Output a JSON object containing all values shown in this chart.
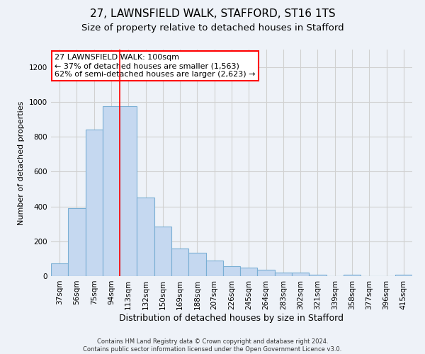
{
  "title_line1": "27, LAWNSFIELD WALK, STAFFORD, ST16 1TS",
  "title_line2": "Size of property relative to detached houses in Stafford",
  "xlabel": "Distribution of detached houses by size in Stafford",
  "ylabel": "Number of detached properties",
  "categories": [
    "37sqm",
    "56sqm",
    "75sqm",
    "94sqm",
    "113sqm",
    "132sqm",
    "150sqm",
    "169sqm",
    "188sqm",
    "207sqm",
    "226sqm",
    "245sqm",
    "264sqm",
    "283sqm",
    "302sqm",
    "321sqm",
    "339sqm",
    "358sqm",
    "377sqm",
    "396sqm",
    "415sqm"
  ],
  "values": [
    75,
    390,
    840,
    975,
    975,
    450,
    285,
    160,
    135,
    90,
    55,
    50,
    35,
    20,
    20,
    10,
    0,
    10,
    0,
    0,
    10
  ],
  "bar_color": "#c5d8f0",
  "bar_edge_color": "#7aafd4",
  "vline_x_index": 3.5,
  "vline_color": "red",
  "annotation_text": "27 LAWNSFIELD WALK: 100sqm\n← 37% of detached houses are smaller (1,563)\n62% of semi-detached houses are larger (2,623) →",
  "annotation_box_color": "white",
  "annotation_box_edge": "red",
  "ylim": [
    0,
    1300
  ],
  "yticks": [
    0,
    200,
    400,
    600,
    800,
    1000,
    1200
  ],
  "grid_color": "#d0d0d0",
  "background_color": "#eef2f8",
  "plot_bg_color": "#eef2f8",
  "footer": "Contains HM Land Registry data © Crown copyright and database right 2024.\nContains public sector information licensed under the Open Government Licence v3.0.",
  "title_fontsize": 11,
  "subtitle_fontsize": 9.5,
  "xlabel_fontsize": 9,
  "ylabel_fontsize": 8,
  "tick_fontsize": 7.5,
  "annotation_fontsize": 8
}
